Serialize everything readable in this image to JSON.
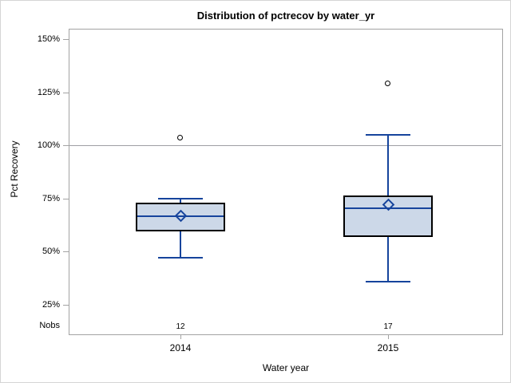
{
  "chart_data": {
    "type": "box",
    "title": "Distribution of pctrecov by water_yr",
    "xlabel": "Water year",
    "ylabel": "Pct Recovery",
    "nobs_label": "Nobs",
    "categories": [
      "2014",
      "2015"
    ],
    "y_ticks": [
      25,
      50,
      75,
      100,
      125,
      150
    ],
    "y_tick_suffix": "%",
    "ylim": [
      11,
      155
    ],
    "reference_line": 100,
    "grid": "reference-line-only",
    "legend": "none",
    "series": [
      {
        "category": "2014",
        "nobs": "12",
        "whisker_low": 47,
        "q1": 59.5,
        "median": 66.5,
        "mean": 67,
        "q3": 73,
        "whisker_high": 75,
        "outliers": [
          103.5
        ]
      },
      {
        "category": "2015",
        "nobs": "17",
        "whisker_low": 36,
        "q1": 57,
        "median": 70.5,
        "mean": 72,
        "q3": 76.5,
        "whisker_high": 105,
        "outliers": [
          129
        ]
      }
    ],
    "colors": {
      "box_fill": "#ccd8e8",
      "box_border": "#000000",
      "line": "#16449c",
      "axis": "#a3a3a3",
      "reference": "#9f9fa3",
      "outlier": "#000000",
      "text": "#000000"
    }
  }
}
